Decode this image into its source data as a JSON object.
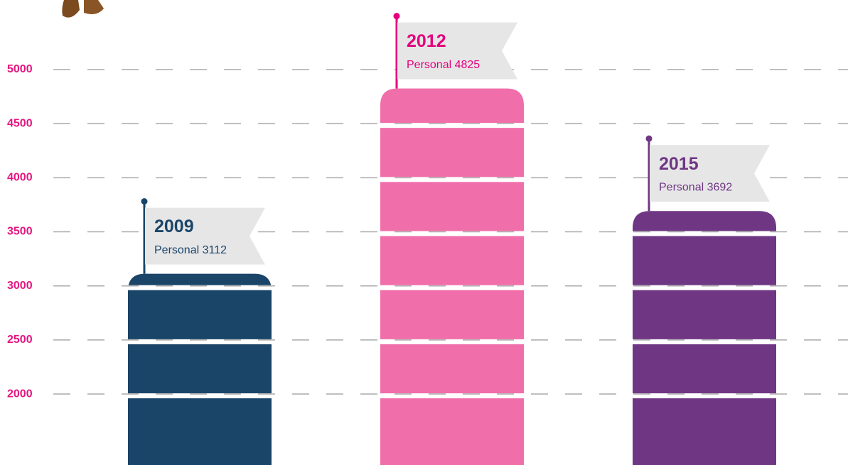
{
  "chart_data": {
    "type": "bar",
    "categories": [
      "2009",
      "2012",
      "2015"
    ],
    "values": [
      3112,
      4825,
      3692
    ],
    "value_labels": [
      "Personal 3112",
      "Personal 4825",
      "Personal 3692"
    ],
    "colors": [
      "#1b4568",
      "#f06ea9",
      "#6f3783"
    ],
    "label_colors": [
      "#1b4568",
      "#e4007c",
      "#6f3783"
    ],
    "ylim": [
      1344,
      5643
    ],
    "yticks": [
      2000,
      2500,
      3000,
      3500,
      4000,
      4500,
      5000
    ],
    "grid": true
  }
}
